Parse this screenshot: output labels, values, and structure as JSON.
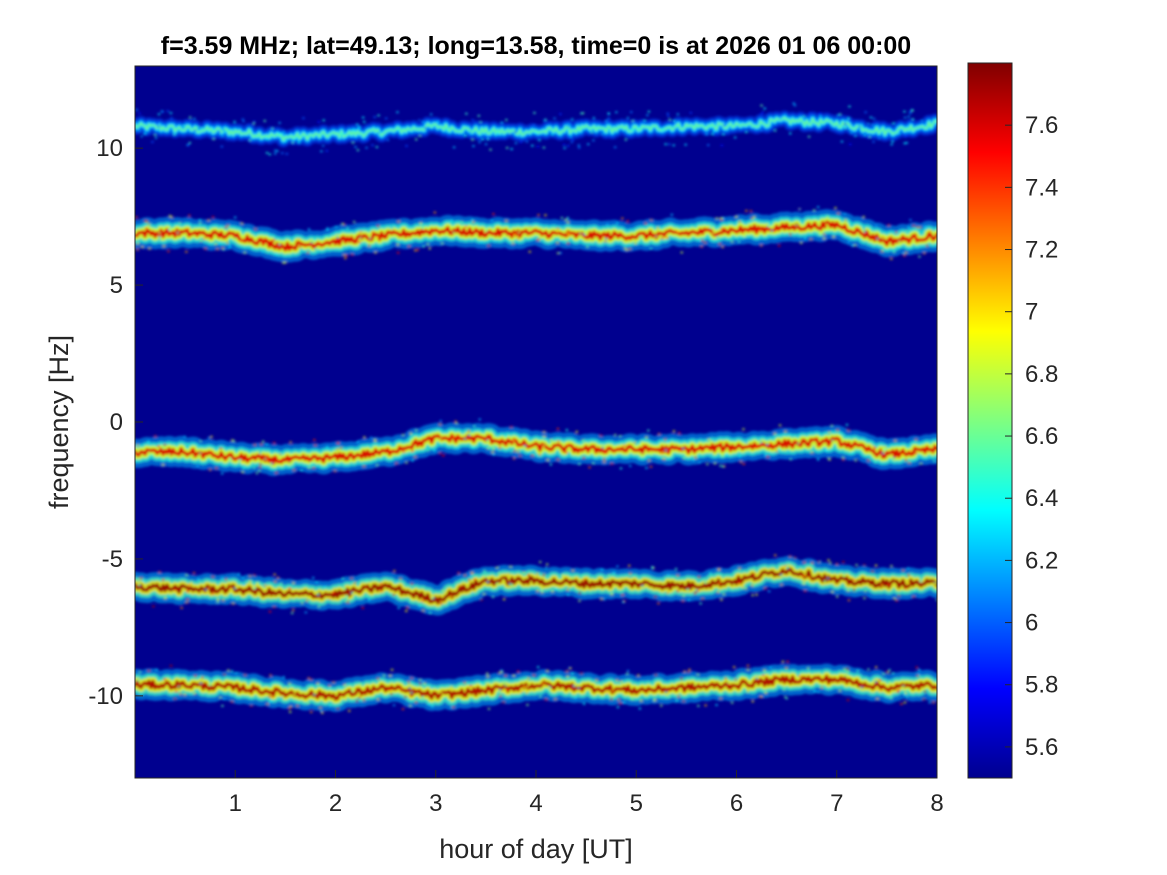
{
  "chart_data": {
    "type": "heatmap",
    "title": "f=3.59 MHz;  lat=49.13; long=13.58, time=0 is at 2026 01 06 00:00",
    "xlabel": "hour of day [UT]",
    "ylabel": "frequency [Hz]",
    "xlim": [
      0,
      8
    ],
    "ylim": [
      -13,
      13
    ],
    "xticks": [
      1,
      2,
      3,
      4,
      5,
      6,
      7,
      8
    ],
    "xtick_labels": [
      "1",
      "2",
      "3",
      "4",
      "5",
      "6",
      "7",
      "8"
    ],
    "yticks": [
      -10,
      -5,
      0,
      5,
      10
    ],
    "ytick_labels": [
      "-10",
      "-5",
      "0",
      "5",
      "10"
    ],
    "colormap": "jet",
    "background_color": "#00008f",
    "colorbar": {
      "range": [
        5.5,
        7.8
      ],
      "ticks": [
        5.6,
        5.8,
        6,
        6.2,
        6.4,
        6.6,
        6.8,
        7,
        7.2,
        7.4,
        7.6
      ],
      "tick_labels": [
        "5.6",
        "5.8",
        "6",
        "6.2",
        "6.4",
        "6.6",
        "6.8",
        "7",
        "7.2",
        "7.4",
        "7.6"
      ]
    },
    "series": [
      {
        "hours": [
          0,
          0.5,
          1,
          1.5,
          2,
          2.5,
          3,
          3.5,
          4,
          4.5,
          5,
          5.5,
          6,
          6.5,
          7,
          7.5,
          8
        ],
        "frequency": [
          10.8,
          10.7,
          10.6,
          10.4,
          10.5,
          10.6,
          10.8,
          10.6,
          10.6,
          10.7,
          10.7,
          10.8,
          10.8,
          11.0,
          10.9,
          10.6,
          10.9
        ],
        "peak_level": 6.6
      },
      {
        "hours": [
          0,
          0.5,
          1,
          1.5,
          2,
          2.5,
          3,
          3.5,
          4,
          4.5,
          5,
          5.5,
          6,
          6.5,
          7,
          7.5,
          8
        ],
        "frequency": [
          6.9,
          6.9,
          6.8,
          6.4,
          6.6,
          6.8,
          7.0,
          6.9,
          6.9,
          6.8,
          6.8,
          6.9,
          7.0,
          7.1,
          7.2,
          6.6,
          6.8
        ],
        "peak_level": 7.6
      },
      {
        "hours": [
          0,
          0.5,
          1,
          1.5,
          2,
          2.5,
          3,
          3.5,
          4,
          4.5,
          5,
          5.5,
          6,
          6.5,
          7,
          7.5,
          8
        ],
        "frequency": [
          -1.1,
          -1.1,
          -1.3,
          -1.4,
          -1.3,
          -1.1,
          -0.6,
          -0.6,
          -0.9,
          -1.0,
          -1.0,
          -1.0,
          -0.9,
          -0.8,
          -0.7,
          -1.2,
          -1.0
        ],
        "peak_level": 7.6
      },
      {
        "hours": [
          0,
          0.5,
          1,
          1.5,
          2,
          2.5,
          3,
          3.5,
          4,
          4.5,
          5,
          5.5,
          6,
          6.5,
          7,
          7.5,
          8
        ],
        "frequency": [
          -6.0,
          -6.1,
          -6.1,
          -6.3,
          -6.3,
          -6.0,
          -6.5,
          -5.8,
          -5.8,
          -5.9,
          -5.9,
          -6.0,
          -5.8,
          -5.4,
          -5.8,
          -5.9,
          -5.9
        ],
        "peak_level": 7.75
      },
      {
        "hours": [
          0,
          0.5,
          1,
          1.5,
          2,
          2.5,
          3,
          3.5,
          4,
          4.5,
          5,
          5.5,
          6,
          6.5,
          7,
          7.5,
          8
        ],
        "frequency": [
          -9.6,
          -9.6,
          -9.7,
          -9.9,
          -10.0,
          -9.7,
          -10.0,
          -9.8,
          -9.6,
          -9.7,
          -9.8,
          -9.7,
          -9.6,
          -9.4,
          -9.4,
          -9.7,
          -9.6
        ],
        "peak_level": 7.7
      }
    ]
  }
}
